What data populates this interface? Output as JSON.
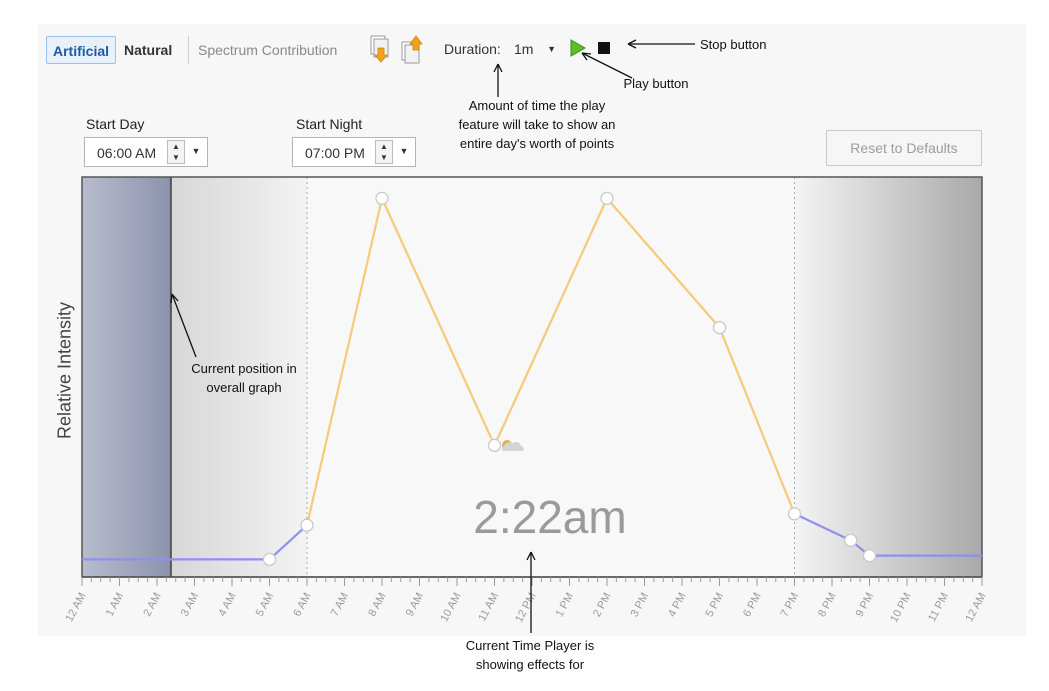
{
  "toolbar": {
    "tabs": [
      {
        "label": "Artificial",
        "active": true
      },
      {
        "label": "Natural",
        "active": false
      },
      {
        "label": "Spectrum Contribution",
        "active": false
      }
    ],
    "icons": [
      "import-icon",
      "export-icon"
    ],
    "duration_label": "Duration:",
    "duration_value": "1m",
    "play_color": "#5bbf2a",
    "stop_color": "#111111"
  },
  "schedule": {
    "start_day_label": "Start Day",
    "start_day_value": "06:00 AM",
    "start_night_label": "Start Night",
    "start_night_value": "07:00 PM"
  },
  "reset_label": "Reset to Defaults",
  "graph": {
    "ylabel": "Relative Intensity",
    "current_time": "2:22am",
    "x_ticks": [
      "12 AM",
      "1 AM",
      "2 AM",
      "3 AM",
      "4 AM",
      "5 AM",
      "6 AM",
      "7 AM",
      "8 AM",
      "9 AM",
      "10 AM",
      "11 AM",
      "12 PM",
      "1 PM",
      "2 PM",
      "3 PM",
      "4 PM",
      "5 PM",
      "6 PM",
      "7 PM",
      "8 PM",
      "9 PM",
      "10 PM",
      "11 PM",
      "12 AM"
    ],
    "curve_color_day": "#f7c97a",
    "curve_color_night": "#8f8ff0"
  },
  "chart_data": {
    "type": "line",
    "x_unit": "hour of day",
    "day_points": [
      {
        "x": 6.0,
        "y": 0.11
      },
      {
        "x": 8.0,
        "y": 0.97
      },
      {
        "x": 11.0,
        "y": 0.32
      },
      {
        "x": 14.0,
        "y": 0.97
      },
      {
        "x": 17.0,
        "y": 0.63
      },
      {
        "x": 19.0,
        "y": 0.14
      }
    ],
    "night_points": [
      {
        "x": 0.0,
        "y": 0.02
      },
      {
        "x": 5.0,
        "y": 0.02
      },
      {
        "x": 6.0,
        "y": 0.11
      },
      {
        "x": 19.0,
        "y": 0.14
      },
      {
        "x": 20.5,
        "y": 0.07
      },
      {
        "x": 21.0,
        "y": 0.03
      },
      {
        "x": 24.0,
        "y": 0.03
      }
    ],
    "current_position": 2.37,
    "xlim": [
      0,
      24
    ],
    "ylim": [
      0,
      1
    ]
  },
  "annotations": {
    "stop": "Stop button",
    "play": "Play button",
    "duration": "Amount of time the play feature will take to show an entire day's worth of points",
    "position": "Current position in overall graph",
    "current_time": "Current Time Player is showing effects for"
  }
}
